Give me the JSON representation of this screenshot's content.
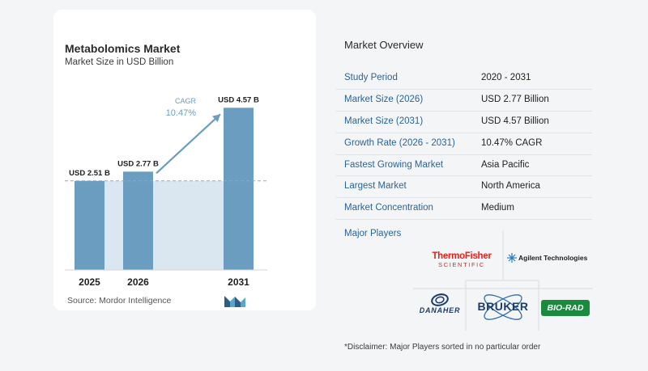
{
  "chart": {
    "title": "Metabolomics Market",
    "subtitle": "Market Size in USD Billion",
    "source": "Source:  Mordor Intelligence",
    "cagr_label": "CAGR",
    "cagr_value": "10.47%"
  },
  "chart_data": {
    "type": "bar",
    "categories": [
      "2025",
      "2026",
      "2031"
    ],
    "values": [
      2.51,
      2.77,
      4.57
    ],
    "data_labels": [
      "USD 2.51 B",
      "USD 2.77 B",
      "USD 4.57 B"
    ],
    "ylim": [
      0,
      4.6
    ],
    "grid": false,
    "colors": {
      "bar": "#6b9dc0",
      "bar_light": "#dbe7f0",
      "arrow": "#6b9dc0",
      "dashed": "#8fa9bc"
    }
  },
  "overview": {
    "title": "Market Overview",
    "rows": [
      {
        "label": "Study Period",
        "value": "2020 - 2031"
      },
      {
        "label": "Market Size (2026)",
        "value": "USD 2.77 Billion"
      },
      {
        "label": "Market Size (2031)",
        "value": "USD 4.57 Billion"
      },
      {
        "label": "Growth Rate (2026 - 2031)",
        "value": "10.47% CAGR"
      },
      {
        "label": "Fastest Growing Market",
        "value": "Asia Pacific"
      },
      {
        "label": "Largest Market",
        "value": "North America"
      },
      {
        "label": "Market Concentration",
        "value": "Medium"
      }
    ]
  },
  "players": {
    "label": "Major Players",
    "thermo_line1": "ThermoFisher",
    "thermo_line2": "SCIENTIFIC",
    "agilent": "Agilent Technologies",
    "danaher": "DANAHER",
    "bruker": "BRUKER",
    "biorad": "BIO-RAD",
    "disclaimer": "*Disclaimer: Major Players sorted in no particular order"
  },
  "icons": [
    "mordor-intelligence-logo",
    "agilent-spark-icon",
    "danaher-logo-icon",
    "bruker-atom-icon"
  ]
}
